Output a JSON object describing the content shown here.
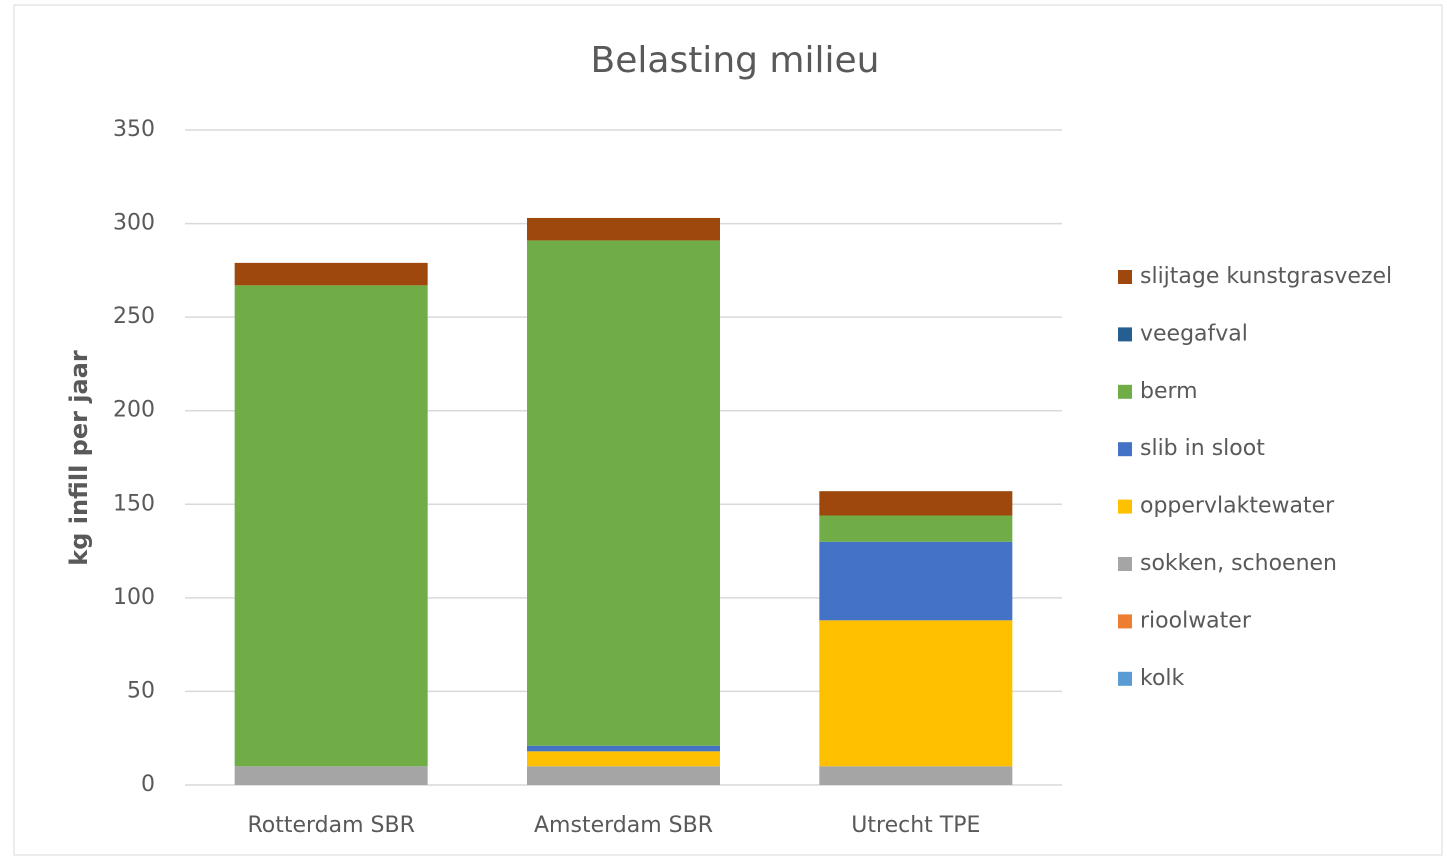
{
  "chart_data": {
    "type": "stacked-bar",
    "title": "Belasting milieu",
    "y_label": "kg infill per jaar",
    "categories": [
      "Rotterdam SBR",
      "Amsterdam SBR",
      "Utrecht TPE"
    ],
    "series": [
      {
        "name": "kolk",
        "color": "#5b9bd5",
        "values": [
          0,
          0,
          0
        ]
      },
      {
        "name": "rioolwater",
        "color": "#ed7d31",
        "values": [
          0,
          0,
          0
        ]
      },
      {
        "name": "sokken, schoenen",
        "color": "#a5a5a5",
        "values": [
          10,
          10,
          10
        ]
      },
      {
        "name": "oppervlaktewater",
        "color": "#ffc000",
        "values": [
          0,
          8,
          78
        ]
      },
      {
        "name": "slib in sloot",
        "color": "#4472c4",
        "values": [
          0,
          3,
          42
        ]
      },
      {
        "name": "berm",
        "color": "#70ad47",
        "values": [
          257,
          270,
          14
        ]
      },
      {
        "name": "veegafval",
        "color": "#255e91",
        "values": [
          0,
          0,
          0
        ]
      },
      {
        "name": "slijtage kunstgrasvezel",
        "color": "#9e480e",
        "values": [
          12,
          12,
          13
        ]
      }
    ],
    "ylim": [
      0,
      350
    ],
    "yticks": [
      0,
      50,
      100,
      150,
      200,
      250,
      300,
      350
    ],
    "grid": true,
    "legend": "right"
  }
}
